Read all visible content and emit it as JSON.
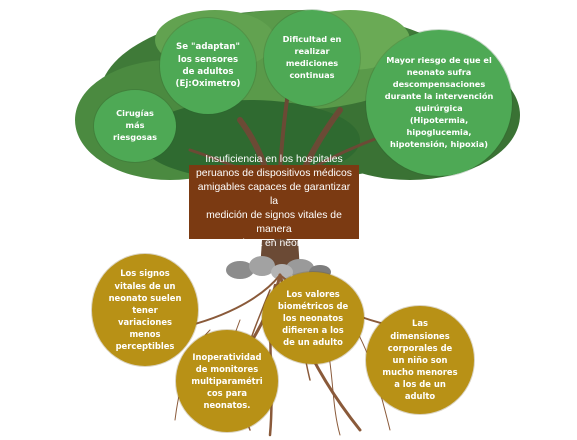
{
  "tree": {
    "problem": "Insuficiencia en los hospitales\nperuanos de dispositivos médicos\namigables capaces de garantizar la\nmedición de signos vitales de manera\ncontinua en neonatos.",
    "effects": [
      {
        "text": "Se \"adaptan\"\nlos sensores\nde adultos\n(Ej:Oximetro)"
      },
      {
        "text": "Dificultad en\nrealizar\nmediciones\ncontinuas"
      },
      {
        "text": "Mayor riesgo de que el\nneonato sufra\ndescompensaciones\ndurante la intervención\nquirúrgica\n(Hipotermia,\nhipoglucemia,\nhipotensión, hipoxia)"
      },
      {
        "text": "Cirugías\nmás\nriesgosas"
      }
    ],
    "causes": [
      {
        "text": "Los signos\nvitales de un\nneonato suelen\ntener\nvariaciones\nmenos\nperceptibles"
      },
      {
        "text": "Los valores\nbiométricos de\nlos neonatos\ndifieren a los\nde un adulto"
      },
      {
        "text": "Inoperatividad\nde monitores\nmultiparamétri\ncos para\nneonatos."
      },
      {
        "text": "Las\ndimensiones\ncorporales de\nun niño son\nmucho menores\na los de un\nadulto"
      }
    ]
  },
  "colors": {
    "effect_bubble": "#4ea955",
    "cause_bubble": "#b89116",
    "problem_box": "#7b3a12",
    "foliage": "#3f7a38",
    "trunk": "#6b4a35",
    "roots": "#8a5a3a"
  }
}
